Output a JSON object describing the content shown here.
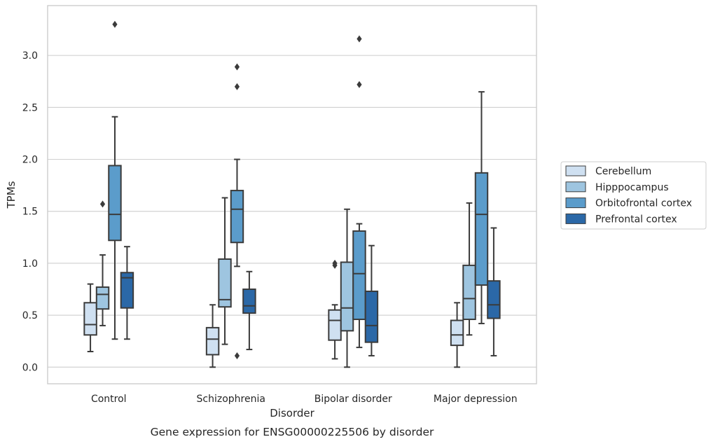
{
  "chart_data": {
    "type": "box",
    "title": "Gene expression for ENSG00000225506 by disorder",
    "xlabel": "Disorder",
    "ylabel": "TPMs",
    "ylim": [
      -0.16,
      3.48
    ],
    "yticks": [
      0.0,
      0.5,
      1.0,
      1.5,
      2.0,
      2.5,
      3.0
    ],
    "ytick_labels": [
      "0.0",
      "0.5",
      "1.0",
      "1.5",
      "2.0",
      "2.5",
      "3.0"
    ],
    "grid": "horizontal",
    "legend_position": "right",
    "categories": [
      "Control",
      "Schizophrenia",
      "Bipolar disorder",
      "Major depression"
    ],
    "series": [
      {
        "name": "Cerebellum",
        "color": "#cfe0f1",
        "boxes": [
          {
            "whislo": 0.15,
            "q1": 0.31,
            "med": 0.41,
            "q3": 0.62,
            "whishi": 0.8,
            "fliers": []
          },
          {
            "whislo": 0.0,
            "q1": 0.12,
            "med": 0.27,
            "q3": 0.38,
            "whishi": 0.6,
            "fliers": []
          },
          {
            "whislo": 0.08,
            "q1": 0.26,
            "med": 0.45,
            "q3": 0.55,
            "whishi": 0.6,
            "fliers": [
              0.98,
              1.0
            ]
          },
          {
            "whislo": 0.0,
            "q1": 0.21,
            "med": 0.31,
            "q3": 0.45,
            "whishi": 0.62,
            "fliers": []
          }
        ]
      },
      {
        "name": "Hipppocampus",
        "color": "#9ec5e0",
        "boxes": [
          {
            "whislo": 0.4,
            "q1": 0.56,
            "med": 0.7,
            "q3": 0.77,
            "whishi": 1.08,
            "fliers": [
              1.57
            ]
          },
          {
            "whislo": 0.22,
            "q1": 0.58,
            "med": 0.65,
            "q3": 1.04,
            "whishi": 1.63,
            "fliers": []
          },
          {
            "whislo": 0.0,
            "q1": 0.35,
            "med": 0.57,
            "q3": 1.01,
            "whishi": 1.52,
            "fliers": []
          },
          {
            "whislo": 0.31,
            "q1": 0.46,
            "med": 0.66,
            "q3": 0.98,
            "whishi": 1.58,
            "fliers": []
          }
        ]
      },
      {
        "name": "Orbitofrontal cortex",
        "color": "#5b9ccb",
        "boxes": [
          {
            "whislo": 0.27,
            "q1": 1.22,
            "med": 1.47,
            "q3": 1.94,
            "whishi": 2.41,
            "fliers": [
              3.3
            ]
          },
          {
            "whislo": 0.97,
            "q1": 1.2,
            "med": 1.52,
            "q3": 1.7,
            "whishi": 2.0,
            "fliers": [
              0.11,
              2.7,
              2.89
            ]
          },
          {
            "whislo": 0.19,
            "q1": 0.46,
            "med": 0.9,
            "q3": 1.31,
            "whishi": 1.38,
            "fliers": [
              2.72,
              3.16
            ]
          },
          {
            "whislo": 0.42,
            "q1": 0.79,
            "med": 1.47,
            "q3": 1.87,
            "whishi": 2.65,
            "fliers": []
          }
        ]
      },
      {
        "name": "Prefrontal cortex",
        "color": "#2b68a7",
        "boxes": [
          {
            "whislo": 0.27,
            "q1": 0.57,
            "med": 0.86,
            "q3": 0.91,
            "whishi": 1.16,
            "fliers": []
          },
          {
            "whislo": 0.17,
            "q1": 0.52,
            "med": 0.59,
            "q3": 0.75,
            "whishi": 0.92,
            "fliers": []
          },
          {
            "whislo": 0.11,
            "q1": 0.24,
            "med": 0.4,
            "q3": 0.73,
            "whishi": 1.17,
            "fliers": []
          },
          {
            "whislo": 0.11,
            "q1": 0.47,
            "med": 0.6,
            "q3": 0.83,
            "whishi": 1.34,
            "fliers": []
          }
        ]
      }
    ]
  }
}
